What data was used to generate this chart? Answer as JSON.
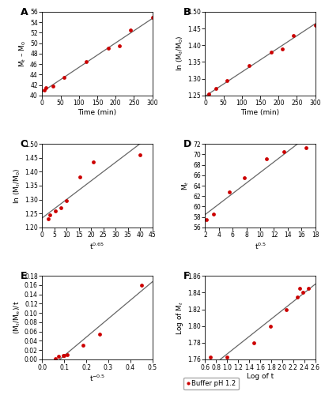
{
  "A": {
    "label": "A",
    "x": [
      5,
      10,
      30,
      60,
      120,
      180,
      210,
      240,
      300
    ],
    "y": [
      41.0,
      41.5,
      41.8,
      43.5,
      46.5,
      49.0,
      49.5,
      52.5,
      55.0
    ],
    "xlabel": "Time (min)",
    "ylabel": "M$_t$ – M$_0$",
    "xlim": [
      0,
      300
    ],
    "ylim": [
      40,
      56
    ],
    "yticks": [
      40,
      42,
      44,
      46,
      48,
      50,
      52,
      54,
      56
    ],
    "xticks": [
      0,
      50,
      100,
      150,
      200,
      250,
      300
    ]
  },
  "B": {
    "label": "B",
    "x": [
      5,
      10,
      30,
      60,
      120,
      180,
      210,
      240,
      300
    ],
    "y": [
      1.245,
      1.255,
      1.27,
      1.295,
      1.34,
      1.38,
      1.39,
      1.43,
      1.46
    ],
    "xlabel": "Time (min)",
    "ylabel": "ln (M$_t$/M$_0$)",
    "xlim": [
      0,
      300
    ],
    "ylim": [
      1.25,
      1.5
    ],
    "yticks": [
      1.25,
      1.3,
      1.35,
      1.4,
      1.45,
      1.5
    ],
    "xticks": [
      0,
      50,
      100,
      150,
      200,
      250,
      300
    ]
  },
  "C": {
    "label": "C",
    "x": [
      2.6,
      3.2,
      5.5,
      7.5,
      10.0,
      15.5,
      21.0,
      40.0
    ],
    "y": [
      1.23,
      1.245,
      1.26,
      1.27,
      1.295,
      1.38,
      1.435,
      1.46
    ],
    "xlabel": "t$^{0.65}$",
    "ylabel": "ln (M$_t$/M$_0$)",
    "xlim": [
      0,
      45
    ],
    "ylim": [
      1.2,
      1.5
    ],
    "yticks": [
      1.2,
      1.25,
      1.3,
      1.35,
      1.4,
      1.45,
      1.5
    ],
    "xticks": [
      0,
      5,
      10,
      15,
      20,
      25,
      30,
      35,
      40,
      45
    ]
  },
  "D": {
    "label": "D",
    "x": [
      2.2,
      3.2,
      5.5,
      7.7,
      10.9,
      13.4,
      16.7
    ],
    "y": [
      57.5,
      58.5,
      62.8,
      65.5,
      69.2,
      70.5,
      71.2
    ],
    "xlabel": "t$^{0.5}$",
    "ylabel": "M$_t$",
    "xlim": [
      2,
      18
    ],
    "ylim": [
      56,
      72
    ],
    "yticks": [
      56,
      58,
      60,
      62,
      64,
      66,
      68,
      70,
      72
    ],
    "xticks": [
      2,
      4,
      6,
      8,
      10,
      12,
      14,
      16,
      18
    ]
  },
  "E": {
    "label": "E",
    "x": [
      0.058,
      0.075,
      0.095,
      0.1,
      0.115,
      0.185,
      0.26,
      0.45
    ],
    "y": [
      0.002,
      0.006,
      0.008,
      0.009,
      0.01,
      0.03,
      0.055,
      0.16
    ],
    "xlabel": "t$^{-0.5}$",
    "ylabel": "(M$_t$/M$_\\infty$)/t",
    "xlim": [
      0.0,
      0.5
    ],
    "ylim": [
      0.0,
      0.18
    ],
    "yticks": [
      0.0,
      0.02,
      0.04,
      0.06,
      0.08,
      0.1,
      0.12,
      0.14,
      0.16,
      0.18
    ],
    "xticks": [
      0.0,
      0.1,
      0.2,
      0.3,
      0.4,
      0.5
    ]
  },
  "F": {
    "label": "F",
    "x": [
      0.7,
      1.0,
      1.48,
      1.78,
      2.08,
      2.28,
      2.32,
      2.38,
      2.48
    ],
    "y": [
      1.763,
      1.763,
      1.78,
      1.8,
      1.82,
      1.835,
      1.845,
      1.84,
      1.845
    ],
    "xlabel": "Log of t",
    "ylabel": "Log of M$_t$",
    "xlim": [
      0.6,
      2.6
    ],
    "ylim": [
      1.76,
      1.86
    ],
    "yticks": [
      1.76,
      1.78,
      1.8,
      1.82,
      1.84,
      1.86
    ],
    "xticks": [
      0.6,
      0.8,
      1.0,
      1.2,
      1.4,
      1.6,
      1.8,
      2.0,
      2.2,
      2.4,
      2.6
    ]
  },
  "dot_color": "#cc0000",
  "line_color": "#666666",
  "legend_label": "Buffer pH 1.2",
  "bg_color": "#ffffff"
}
